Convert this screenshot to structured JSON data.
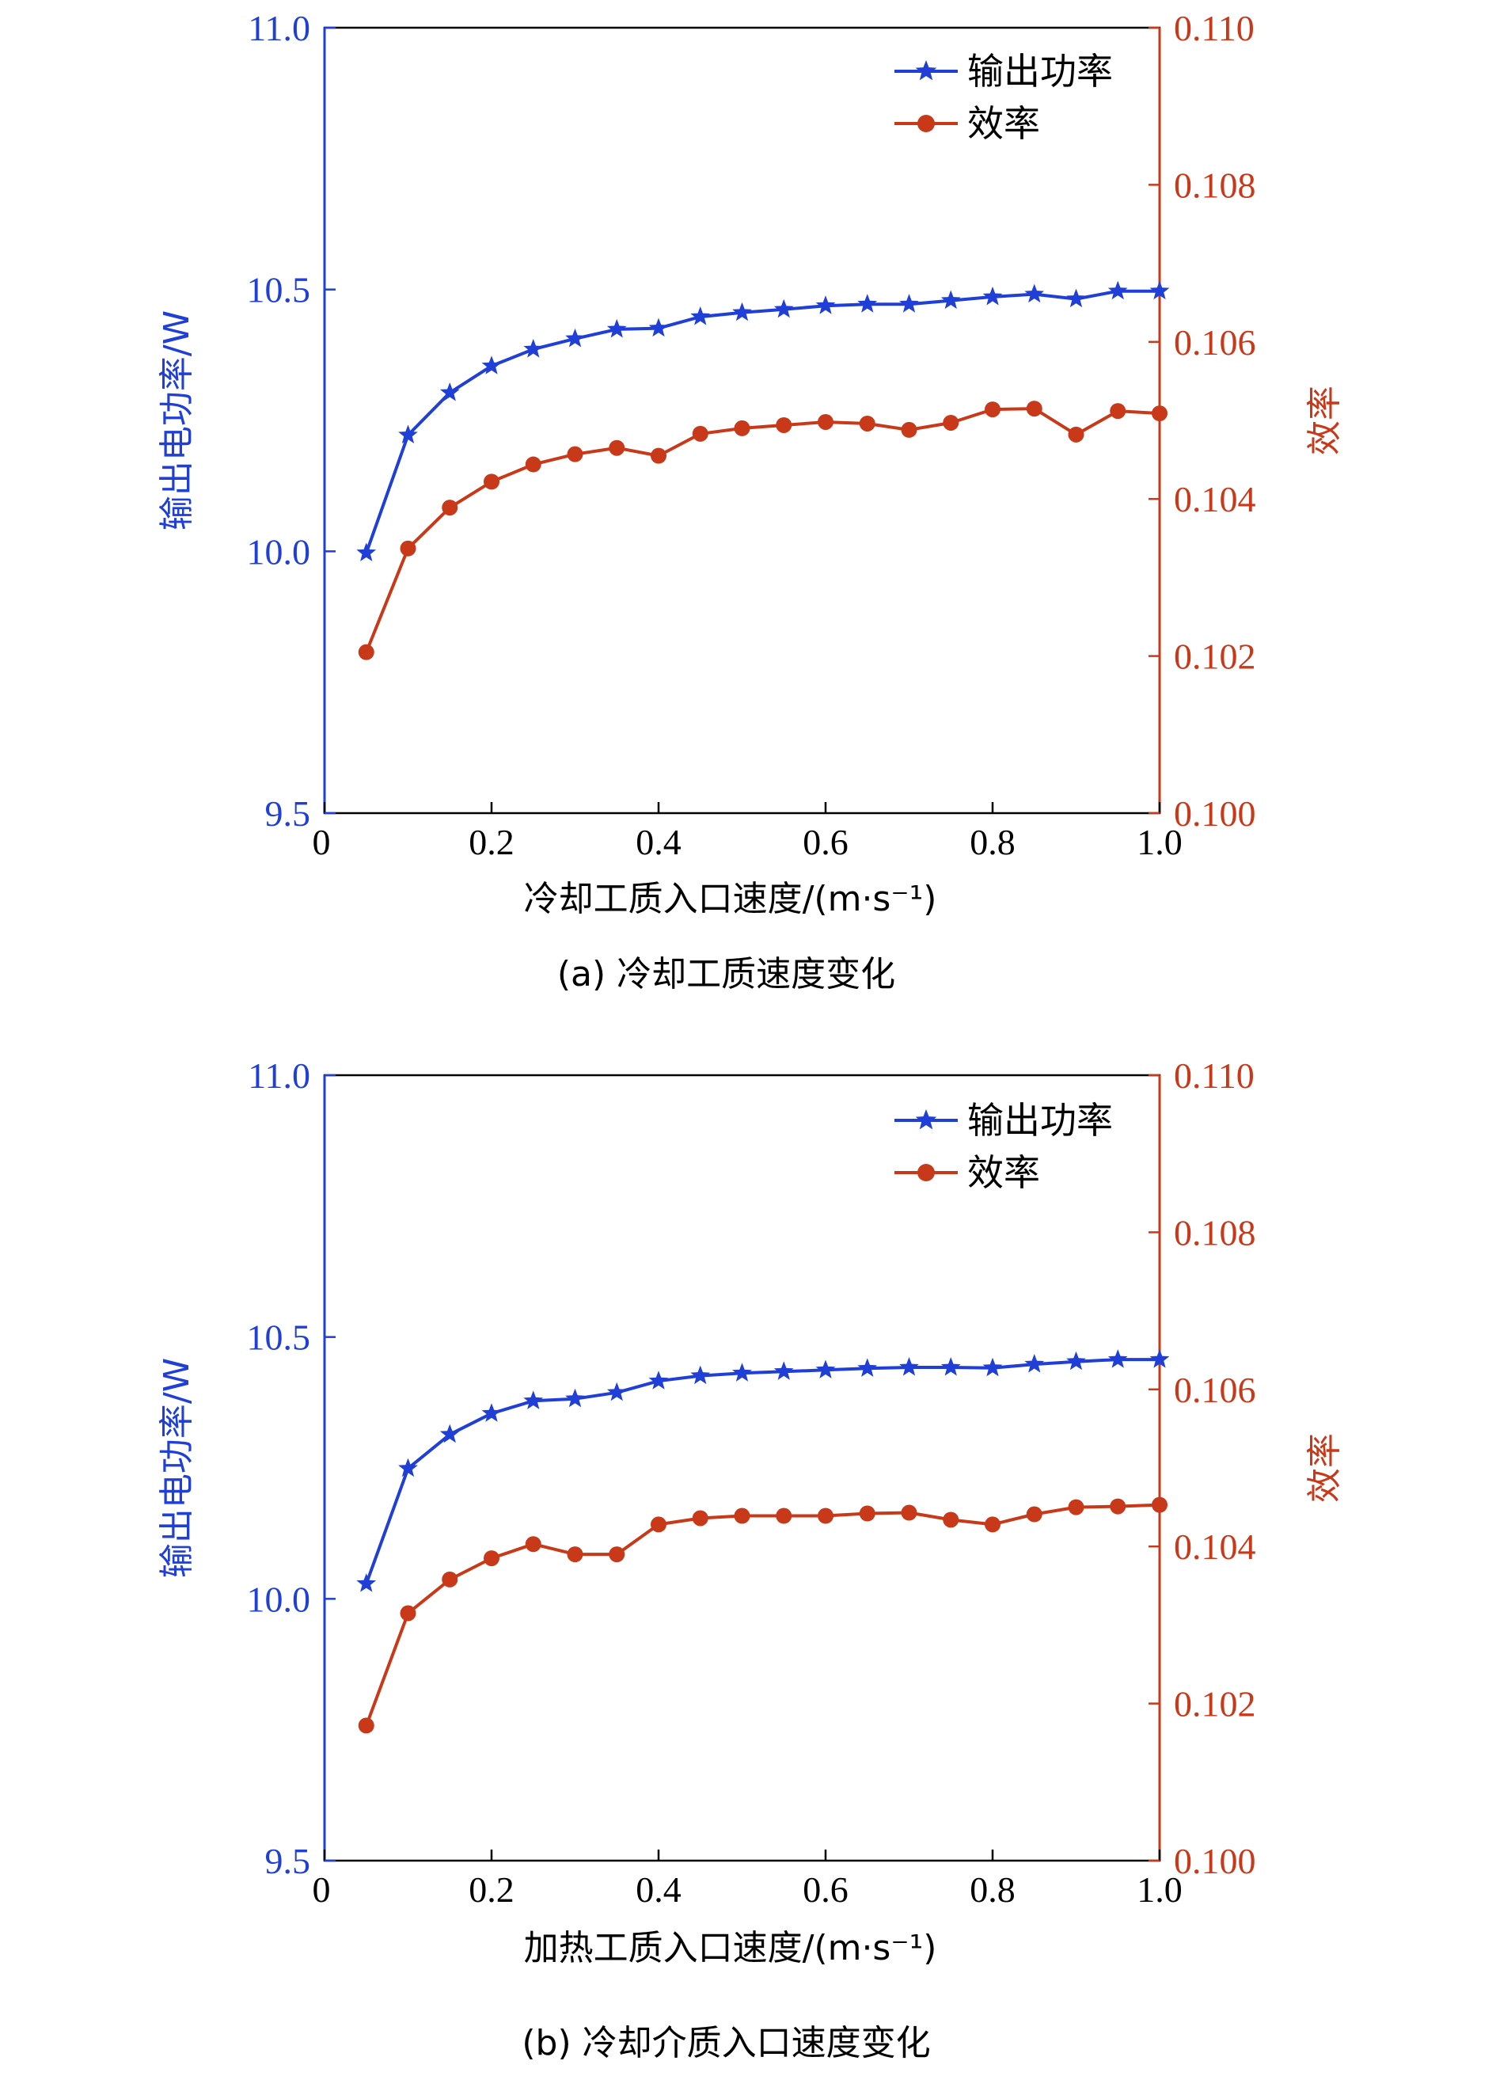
{
  "colors": {
    "power": "#1f3fd6",
    "efficiency": "#c8391a",
    "axis": "#000000"
  },
  "chart_data": [
    {
      "type": "line",
      "caption": "(a) 冷却工质速度变化",
      "xlabel": "冷却工质入口速度/(m·s⁻¹)",
      "ylabel_left": "输出电功率/W",
      "ylabel_right": "效率",
      "xlim": [
        0,
        1.0
      ],
      "ylim_left": [
        9.5,
        11.0
      ],
      "ylim_right": [
        0.1,
        0.11
      ],
      "x_ticks": [
        "0",
        "0.2",
        "0.4",
        "0.6",
        "0.8",
        "1.0"
      ],
      "y_left_ticks": [
        "9.5",
        "10.0",
        "10.5",
        "11.0"
      ],
      "y_right_ticks": [
        "0.100",
        "0.102",
        "0.104",
        "0.106",
        "0.108",
        "0.110"
      ],
      "legend_position": "top-right",
      "x": [
        0.05,
        0.1,
        0.15,
        0.2,
        0.25,
        0.3,
        0.35,
        0.4,
        0.45,
        0.5,
        0.55,
        0.6,
        0.65,
        0.7,
        0.75,
        0.8,
        0.85,
        0.9,
        0.95,
        1.0
      ],
      "series": [
        {
          "name": "输出功率",
          "axis": "left",
          "marker": "star",
          "values": [
            9.997,
            10.222,
            10.303,
            10.354,
            10.386,
            10.406,
            10.424,
            10.426,
            10.448,
            10.456,
            10.462,
            10.469,
            10.472,
            10.472,
            10.479,
            10.486,
            10.491,
            10.482,
            10.497,
            10.497
          ]
        },
        {
          "name": "效率",
          "axis": "right",
          "marker": "circle",
          "values": [
            0.10205,
            0.10337,
            0.10389,
            0.10422,
            0.10444,
            0.10457,
            0.10465,
            0.10455,
            0.10483,
            0.1049,
            0.10494,
            0.10498,
            0.10496,
            0.10488,
            0.10497,
            0.10514,
            0.10515,
            0.10482,
            0.10512,
            0.10509
          ]
        }
      ]
    },
    {
      "type": "line",
      "caption": "(b) 冷却介质入口速度变化",
      "xlabel": "加热工质入口速度/(m·s⁻¹)",
      "ylabel_left": "输出电功率/W",
      "ylabel_right": "效率",
      "xlim": [
        0,
        1.0
      ],
      "ylim_left": [
        9.5,
        11.0
      ],
      "ylim_right": [
        0.1,
        0.11
      ],
      "x_ticks": [
        "0",
        "0.2",
        "0.4",
        "0.6",
        "0.8",
        "1.0"
      ],
      "y_left_ticks": [
        "9.5",
        "10.0",
        "10.5",
        "11.0"
      ],
      "y_right_ticks": [
        "0.100",
        "0.102",
        "0.104",
        "0.106",
        "0.108",
        "0.110"
      ],
      "legend_position": "top-right",
      "x": [
        0.05,
        0.1,
        0.15,
        0.2,
        0.25,
        0.3,
        0.35,
        0.4,
        0.45,
        0.5,
        0.55,
        0.6,
        0.65,
        0.7,
        0.75,
        0.8,
        0.85,
        0.9,
        0.95,
        1.0
      ],
      "series": [
        {
          "name": "输出功率",
          "axis": "left",
          "marker": "star",
          "values": [
            10.029,
            10.249,
            10.314,
            10.354,
            10.378,
            10.382,
            10.394,
            10.416,
            10.426,
            10.431,
            10.434,
            10.437,
            10.44,
            10.442,
            10.442,
            10.441,
            10.448,
            10.453,
            10.457,
            10.457
          ]
        },
        {
          "name": "效率",
          "axis": "right",
          "marker": "circle",
          "values": [
            0.10172,
            0.10315,
            0.10358,
            0.10385,
            0.10403,
            0.1039,
            0.1039,
            0.10428,
            0.10436,
            0.10439,
            0.10439,
            0.10439,
            0.10442,
            0.10443,
            0.10434,
            0.10428,
            0.10441,
            0.1045,
            0.10451,
            0.10453
          ]
        }
      ]
    }
  ]
}
